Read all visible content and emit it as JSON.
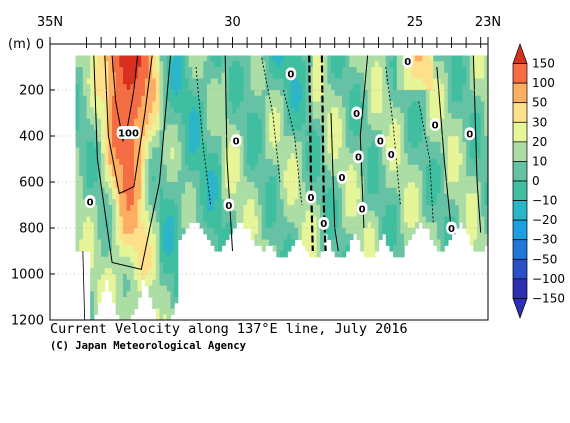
{
  "chart_data": {
    "type": "heatmap",
    "title": "Current Velocity along 137°E line, July 2016",
    "credit": "(C) Japan Meteorological Agency",
    "ylabel": "(m)",
    "x_axis": {
      "range": [
        35,
        23
      ],
      "tick_labels": [
        {
          "value": 35,
          "label": "35N"
        },
        {
          "value": 30,
          "label": "30"
        },
        {
          "value": 25,
          "label": "25"
        },
        {
          "value": 23,
          "label": "23N"
        }
      ],
      "station_ticks": [
        34.0,
        33.6,
        33.2,
        32.8,
        32.4,
        32.0,
        31.6,
        31.2,
        30.8,
        30.4,
        30.0,
        29.6,
        29.2,
        28.8,
        28.4,
        28.0,
        27.6,
        27.2,
        26.8,
        26.4,
        26.0,
        25.6,
        25.2,
        24.8,
        24.4,
        24.0,
        23.6,
        23.2
      ]
    },
    "y_axis": {
      "range": [
        0,
        1200
      ],
      "inverted": true,
      "tick_labels": [
        0,
        200,
        400,
        600,
        800,
        1000,
        1200
      ],
      "grid": "dotted"
    },
    "colorbar": {
      "levels": [
        150,
        100,
        50,
        30,
        20,
        10,
        0,
        -10,
        -20,
        -30,
        -50,
        -100,
        -150
      ],
      "colors": [
        "#d7301f",
        "#f46d43",
        "#fdae61",
        "#fee08b",
        "#e6f598",
        "#abdda4",
        "#66c2a5",
        "#3fbf9f",
        "#2bb5c8",
        "#1f9fe0",
        "#1f78d8",
        "#2a50c8",
        "#2a30b0"
      ]
    },
    "contour_labels": [
      {
        "lat": 32.85,
        "depth": 385,
        "text": "100"
      },
      {
        "lat": 33.9,
        "depth": 685,
        "text": "0"
      },
      {
        "lat": 30.1,
        "depth": 700,
        "text": "0"
      },
      {
        "lat": 29.9,
        "depth": 420,
        "text": "0"
      },
      {
        "lat": 28.4,
        "depth": 130,
        "text": "0"
      },
      {
        "lat": 27.85,
        "depth": 665,
        "text": "0"
      },
      {
        "lat": 27.5,
        "depth": 780,
        "text": "0"
      },
      {
        "lat": 27.0,
        "depth": 580,
        "text": "0"
      },
      {
        "lat": 26.6,
        "depth": 300,
        "text": "0"
      },
      {
        "lat": 26.55,
        "depth": 490,
        "text": "0"
      },
      {
        "lat": 26.45,
        "depth": 715,
        "text": "0"
      },
      {
        "lat": 25.95,
        "depth": 420,
        "text": "0"
      },
      {
        "lat": 25.65,
        "depth": 480,
        "text": "0"
      },
      {
        "lat": 25.2,
        "depth": 75,
        "text": "0"
      },
      {
        "lat": 24.45,
        "depth": 350,
        "text": "0"
      },
      {
        "lat": 24.0,
        "depth": 800,
        "text": "0"
      },
      {
        "lat": 23.5,
        "depth": 390,
        "text": "0"
      }
    ],
    "grid": true
  }
}
